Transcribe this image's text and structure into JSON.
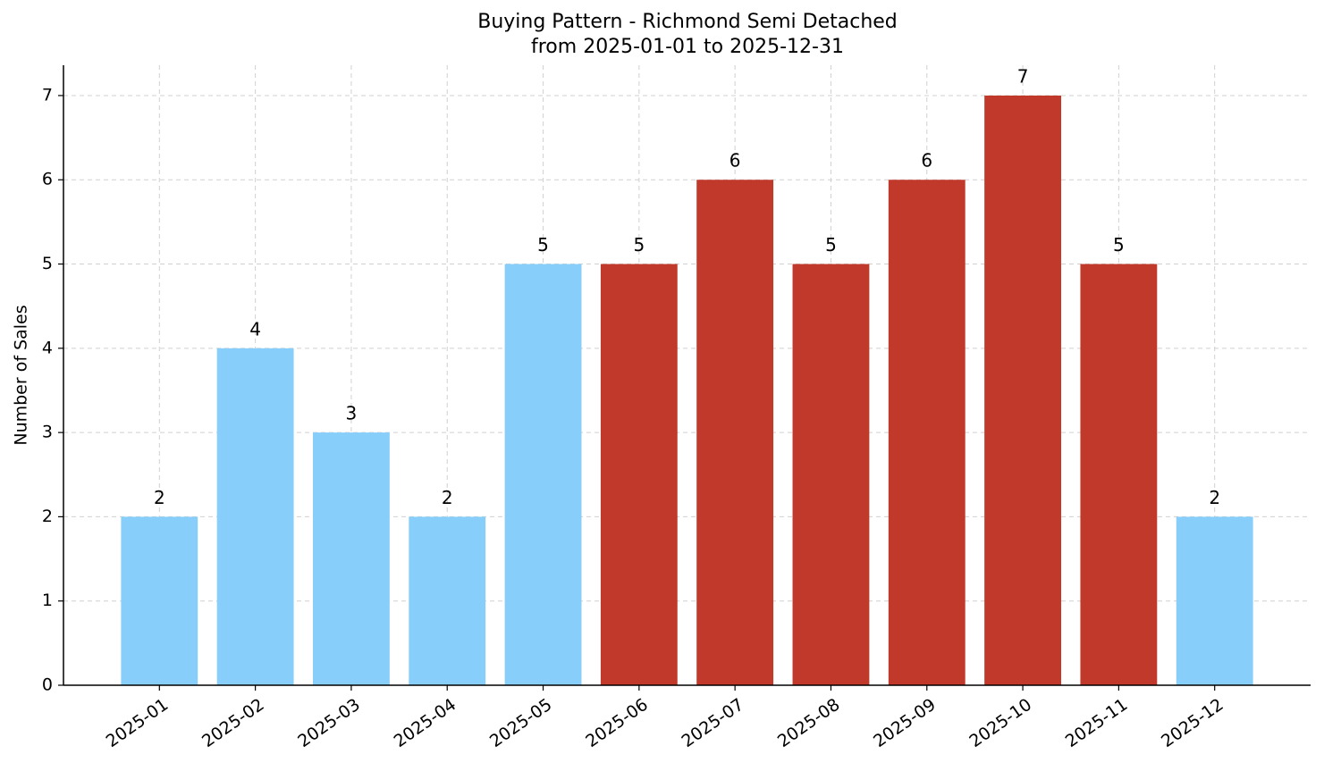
{
  "chart_data": {
    "type": "bar",
    "title": "Buying Pattern - Richmond Semi Detached",
    "subtitle": "from 2025-01-01 to 2025-12-31",
    "y_label": "Number of Sales",
    "categories": [
      "2025-01",
      "2025-02",
      "2025-03",
      "2025-04",
      "2025-05",
      "2025-06",
      "2025-07",
      "2025-08",
      "2025-09",
      "2025-10",
      "2025-11",
      "2025-12"
    ],
    "values": [
      2,
      4,
      3,
      2,
      5,
      5,
      6,
      5,
      6,
      7,
      5,
      2
    ],
    "colors": [
      "#87cefa",
      "#87cefa",
      "#87cefa",
      "#87cefa",
      "#87cefa",
      "#c0392b",
      "#c0392b",
      "#c0392b",
      "#c0392b",
      "#c0392b",
      "#c0392b",
      "#87cefa"
    ],
    "ylim": [
      0,
      7.36
    ],
    "yticks": [
      0,
      1,
      2,
      3,
      4,
      5,
      6,
      7
    ],
    "grid": true
  }
}
